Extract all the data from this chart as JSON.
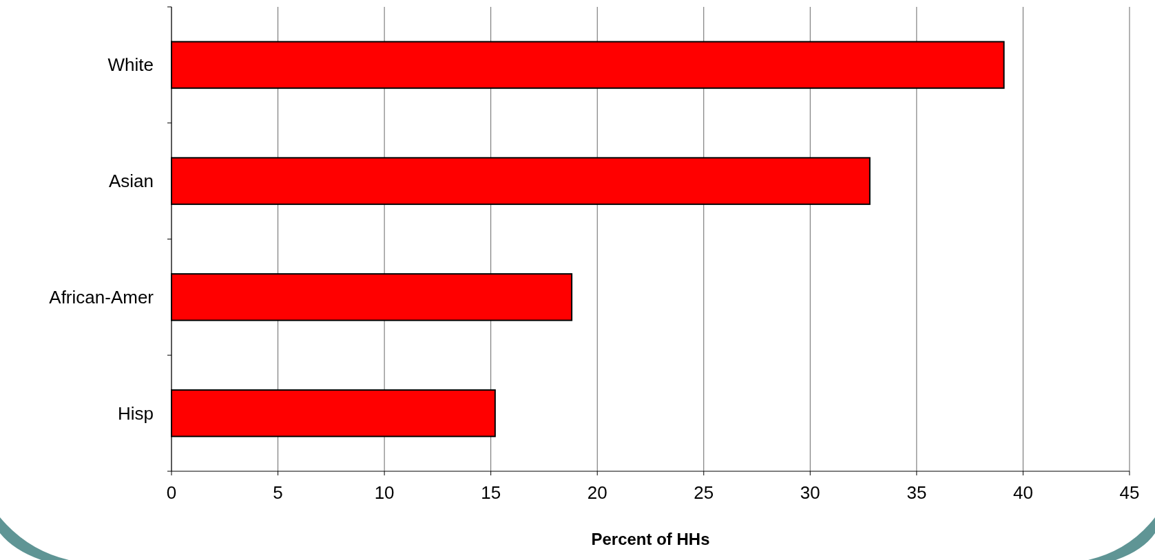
{
  "chart_data": {
    "type": "bar",
    "orientation": "horizontal",
    "xlabel": "Percent of HHs",
    "categories": [
      "White",
      "Asian",
      "African-Amer",
      "Hisp"
    ],
    "values": [
      39.1,
      32.8,
      18.8,
      15.2
    ],
    "color": "#ff0000",
    "xlim": [
      0,
      45
    ],
    "xticks": [
      0,
      5,
      10,
      15,
      20,
      25,
      30,
      35,
      40,
      45
    ],
    "grid": "x"
  }
}
